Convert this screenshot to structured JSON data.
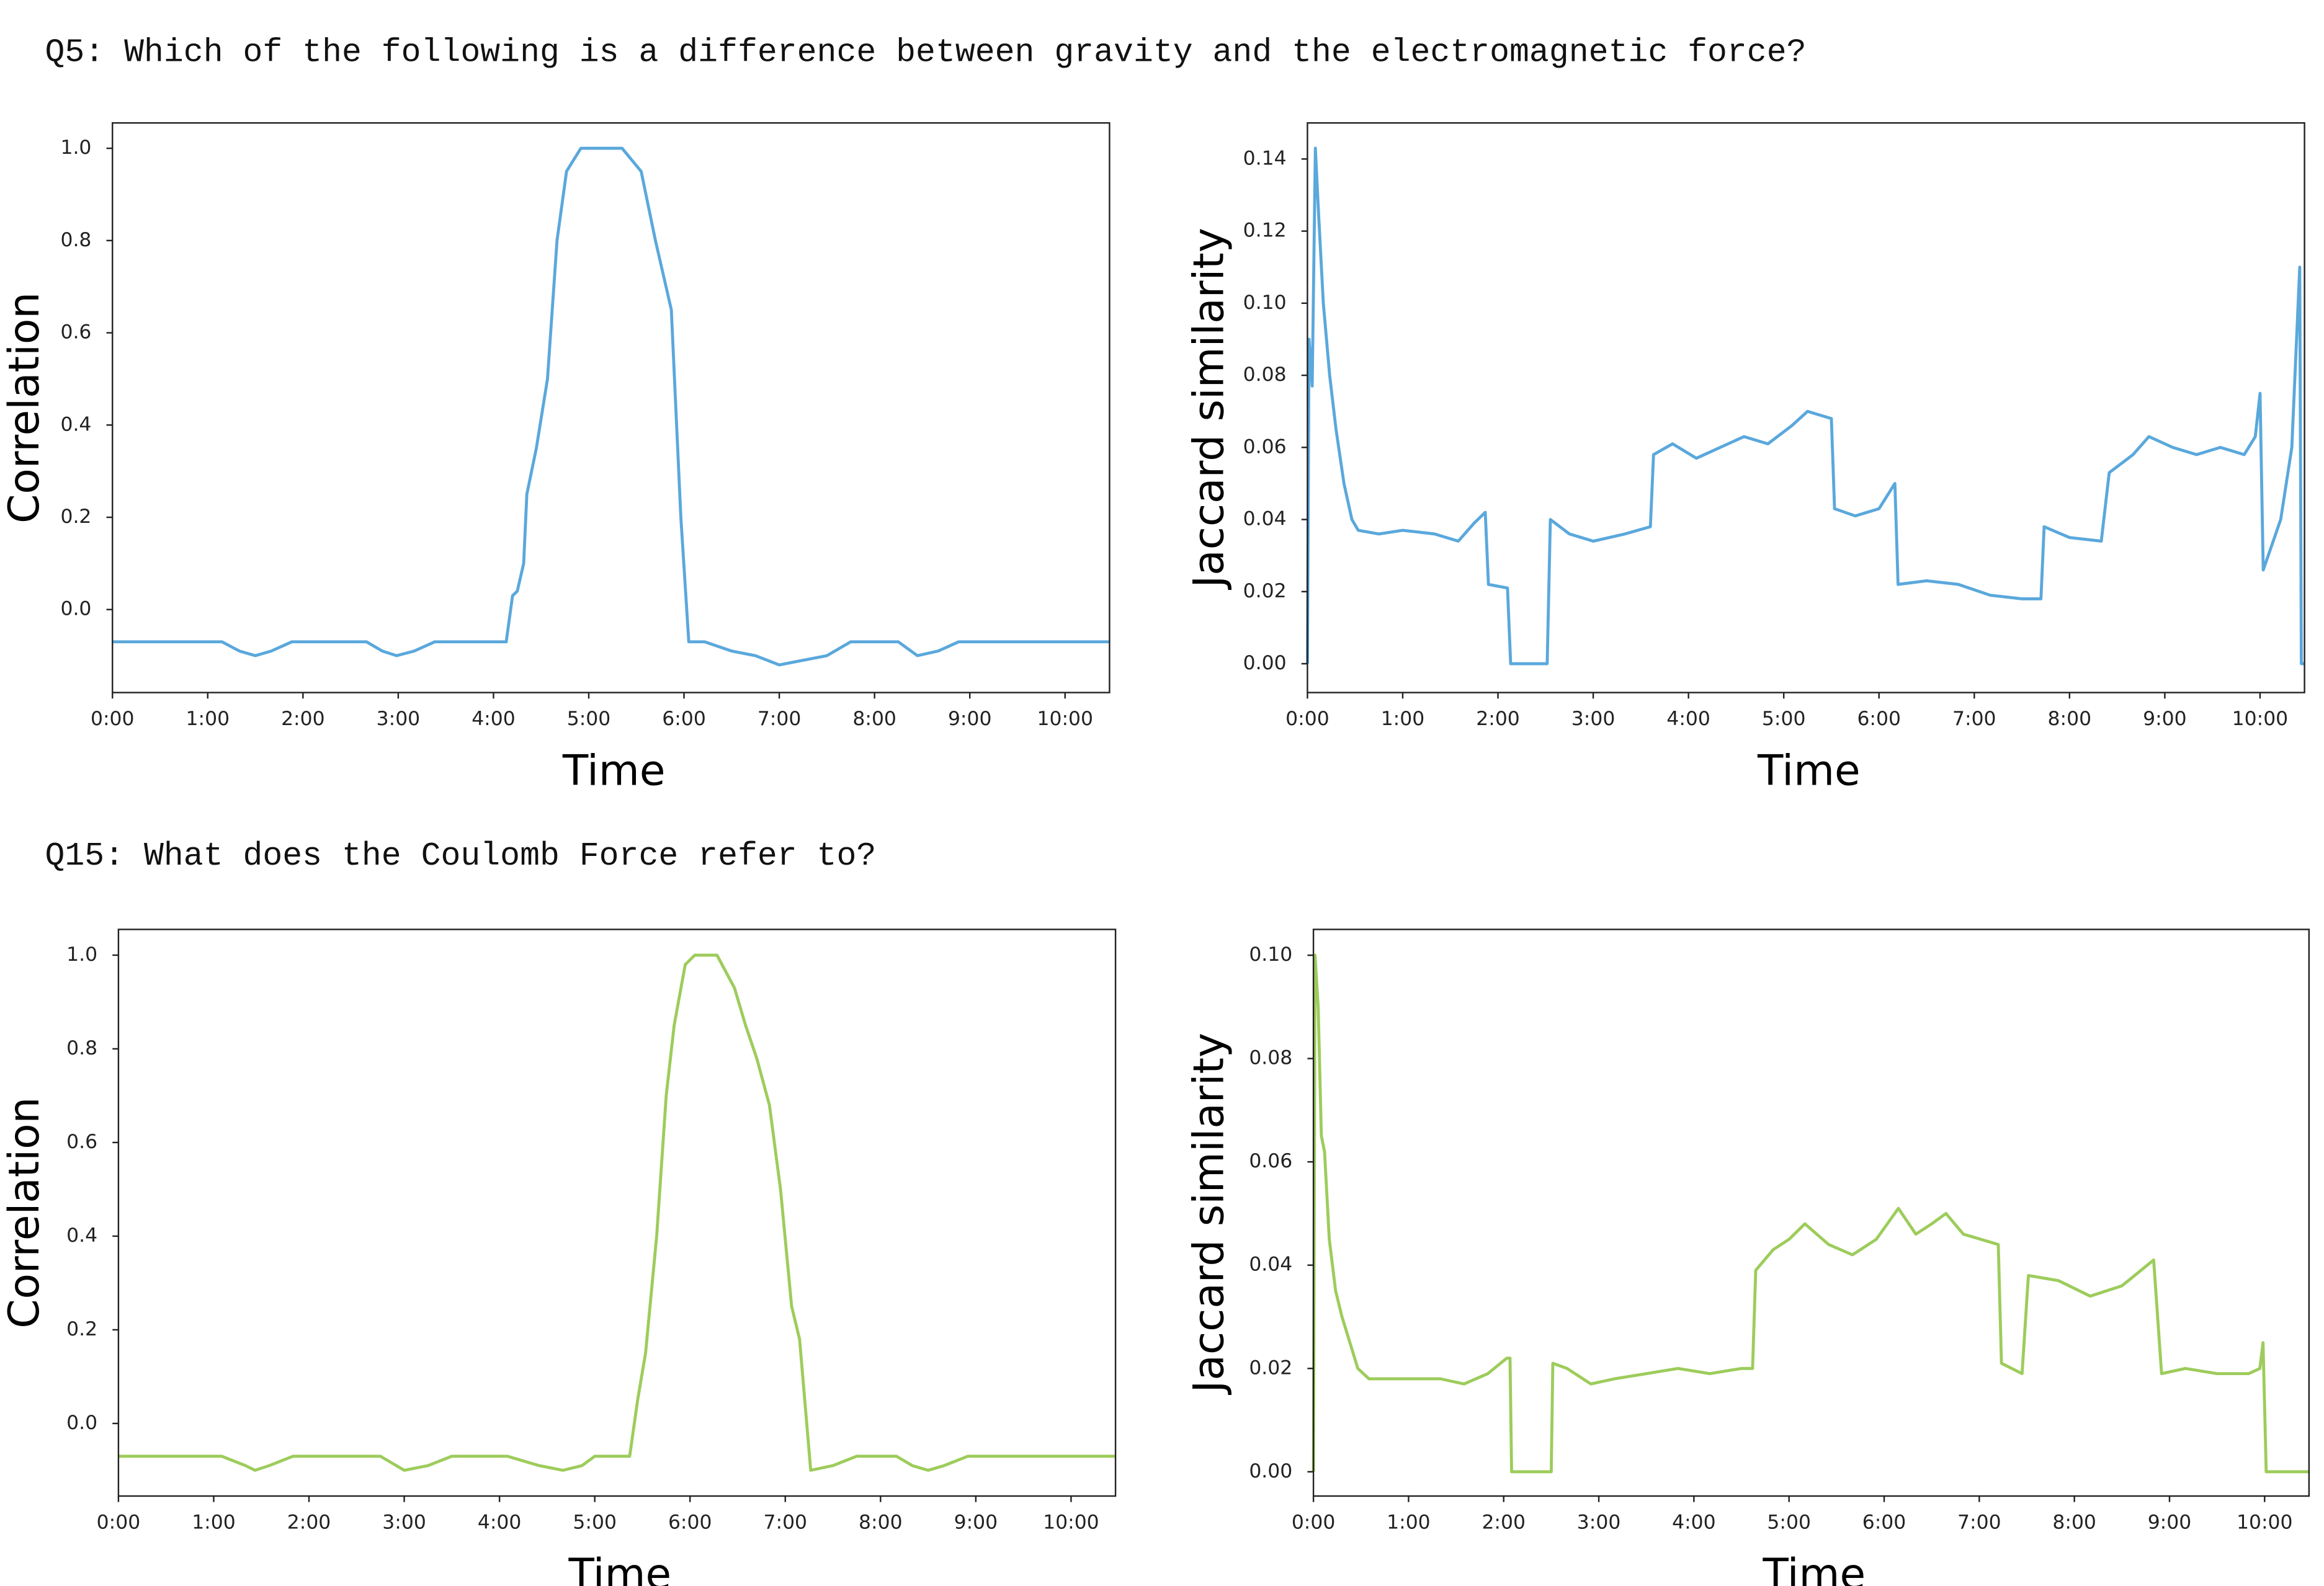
{
  "questions": [
    "Q5: Which of the following is a difference between gravity and the electromagnetic force?",
    "Q15: What does the Coulomb Force refer to?"
  ],
  "chart_data": [
    {
      "type": "line",
      "xlabel": "Time",
      "ylabel": "Correlation",
      "color": "#5aa8dc",
      "xlim": [
        0,
        628
      ],
      "ylim": [
        -0.18,
        1.055
      ],
      "xticks": [
        {
          "value": 0,
          "label": "0:00"
        },
        {
          "value": 60,
          "label": "1:00"
        },
        {
          "value": 120,
          "label": "2:00"
        },
        {
          "value": 180,
          "label": "3:00"
        },
        {
          "value": 240,
          "label": "4:00"
        },
        {
          "value": 300,
          "label": "5:00"
        },
        {
          "value": 360,
          "label": "6:00"
        },
        {
          "value": 420,
          "label": "7:00"
        },
        {
          "value": 480,
          "label": "8:00"
        },
        {
          "value": 540,
          "label": "9:00"
        },
        {
          "value": 600,
          "label": "10:00"
        }
      ],
      "yticks": [
        {
          "value": 0,
          "label": "0.0"
        },
        0.2,
        0.4,
        0.6,
        0.8,
        {
          "value": 1,
          "label": "1.0"
        }
      ],
      "x": [
        0,
        69,
        80,
        90,
        100,
        113,
        160,
        170,
        179,
        190,
        203,
        248,
        252,
        255,
        259,
        261,
        267,
        274,
        280,
        286,
        295,
        321,
        333,
        342,
        352,
        358,
        363,
        373,
        390,
        405,
        420,
        435,
        450,
        465,
        495,
        507,
        520,
        533,
        628
      ],
      "values": [
        -0.07,
        -0.07,
        -0.09,
        -0.1,
        -0.09,
        -0.07,
        -0.07,
        -0.09,
        -0.1,
        -0.09,
        -0.07,
        -0.07,
        0.03,
        0.04,
        0.1,
        0.25,
        0.35,
        0.5,
        0.8,
        0.95,
        1.0,
        1.0,
        0.95,
        0.8,
        0.65,
        0.2,
        -0.07,
        -0.07,
        -0.09,
        -0.1,
        -0.12,
        -0.11,
        -0.1,
        -0.07,
        -0.07,
        -0.1,
        -0.09,
        -0.07,
        -0.07
      ]
    },
    {
      "type": "line",
      "xlabel": "Time",
      "ylabel": "Jaccard similarity",
      "color": "#5aa8dc",
      "xlim": [
        0,
        628
      ],
      "ylim": [
        -0.008,
        0.15
      ],
      "xticks": [
        {
          "value": 0,
          "label": "0:00"
        },
        {
          "value": 60,
          "label": "1:00"
        },
        {
          "value": 120,
          "label": "2:00"
        },
        {
          "value": 180,
          "label": "3:00"
        },
        {
          "value": 240,
          "label": "4:00"
        },
        {
          "value": 300,
          "label": "5:00"
        },
        {
          "value": 360,
          "label": "6:00"
        },
        {
          "value": 420,
          "label": "7:00"
        },
        {
          "value": 480,
          "label": "8:00"
        },
        {
          "value": 540,
          "label": "9:00"
        },
        {
          "value": 600,
          "label": "10:00"
        }
      ],
      "yticks": [
        {
          "value": 0,
          "label": "0.00"
        },
        0.02,
        0.04,
        0.06,
        0.08,
        {
          "value": 0.1,
          "label": "0.10"
        },
        0.12,
        0.14
      ],
      "x": [
        0,
        1,
        3,
        5,
        7,
        10,
        14,
        18,
        23,
        28,
        32,
        45,
        60,
        80,
        95,
        105,
        112,
        114,
        126,
        128,
        151,
        153,
        165,
        180,
        200,
        216,
        218,
        230,
        245,
        260,
        275,
        290,
        305,
        315,
        330,
        332,
        345,
        360,
        370,
        372,
        390,
        410,
        430,
        450,
        462,
        464,
        480,
        500,
        505,
        520,
        530,
        545,
        560,
        575,
        590,
        597,
        600,
        602,
        613,
        620,
        625,
        626,
        628
      ],
      "values": [
        0,
        0.09,
        0.077,
        0.143,
        0.125,
        0.1,
        0.08,
        0.065,
        0.05,
        0.04,
        0.037,
        0.036,
        0.037,
        0.036,
        0.034,
        0.039,
        0.042,
        0.022,
        0.021,
        0,
        0,
        0.04,
        0.036,
        0.034,
        0.036,
        0.038,
        0.058,
        0.061,
        0.057,
        0.06,
        0.063,
        0.061,
        0.066,
        0.07,
        0.068,
        0.043,
        0.041,
        0.043,
        0.05,
        0.022,
        0.023,
        0.022,
        0.019,
        0.018,
        0.018,
        0.038,
        0.035,
        0.034,
        0.053,
        0.058,
        0.063,
        0.06,
        0.058,
        0.06,
        0.058,
        0.063,
        0.075,
        0.026,
        0.04,
        0.06,
        0.11,
        0,
        0
      ]
    },
    {
      "type": "line",
      "xlabel": "Time",
      "ylabel": "Correlation",
      "color": "#9dcc5b",
      "xlim": [
        0,
        628
      ],
      "ylim": [
        -0.155,
        1.055
      ],
      "xticks": [
        {
          "value": 0,
          "label": "0:00"
        },
        {
          "value": 60,
          "label": "1:00"
        },
        {
          "value": 120,
          "label": "2:00"
        },
        {
          "value": 180,
          "label": "3:00"
        },
        {
          "value": 240,
          "label": "4:00"
        },
        {
          "value": 300,
          "label": "5:00"
        },
        {
          "value": 360,
          "label": "6:00"
        },
        {
          "value": 420,
          "label": "7:00"
        },
        {
          "value": 480,
          "label": "8:00"
        },
        {
          "value": 540,
          "label": "9:00"
        },
        {
          "value": 600,
          "label": "10:00"
        }
      ],
      "yticks": [
        {
          "value": 0,
          "label": "0.0"
        },
        0.2,
        0.4,
        0.6,
        0.8,
        {
          "value": 1,
          "label": "1.0"
        }
      ],
      "x": [
        0,
        65,
        80,
        86,
        95,
        110,
        165,
        180,
        195,
        210,
        245,
        265,
        280,
        292,
        300,
        322,
        327,
        332,
        339,
        345,
        350,
        357,
        363,
        377,
        388,
        395,
        402,
        410,
        417,
        424,
        429,
        436,
        450,
        465,
        490,
        500,
        510,
        520,
        535,
        628
      ],
      "values": [
        -0.07,
        -0.07,
        -0.09,
        -0.1,
        -0.09,
        -0.07,
        -0.07,
        -0.1,
        -0.09,
        -0.07,
        -0.07,
        -0.09,
        -0.1,
        -0.09,
        -0.07,
        -0.07,
        0.05,
        0.15,
        0.4,
        0.7,
        0.85,
        0.98,
        1.0,
        1.0,
        0.93,
        0.85,
        0.78,
        0.68,
        0.5,
        0.25,
        0.18,
        -0.1,
        -0.09,
        -0.07,
        -0.07,
        -0.09,
        -0.1,
        -0.09,
        -0.07,
        -0.07
      ]
    },
    {
      "type": "line",
      "xlabel": "Time",
      "ylabel": "Jaccard similarity",
      "color": "#9dcc5b",
      "xlim": [
        0,
        628
      ],
      "ylim": [
        -0.0047,
        0.105
      ],
      "xticks": [
        {
          "value": 0,
          "label": "0:00"
        },
        {
          "value": 60,
          "label": "1:00"
        },
        {
          "value": 120,
          "label": "2:00"
        },
        {
          "value": 180,
          "label": "3:00"
        },
        {
          "value": 240,
          "label": "4:00"
        },
        {
          "value": 300,
          "label": "5:00"
        },
        {
          "value": 360,
          "label": "6:00"
        },
        {
          "value": 420,
          "label": "7:00"
        },
        {
          "value": 480,
          "label": "8:00"
        },
        {
          "value": 540,
          "label": "9:00"
        },
        {
          "value": 600,
          "label": "10:00"
        }
      ],
      "yticks": [
        {
          "value": 0,
          "label": "0.00"
        },
        0.02,
        0.04,
        0.06,
        0.08,
        {
          "value": 0.1,
          "label": "0.10"
        }
      ],
      "x": [
        0,
        1,
        3,
        5,
        7,
        10,
        14,
        18,
        23,
        28,
        35,
        60,
        80,
        95,
        110,
        122,
        124,
        125,
        150,
        151,
        160,
        175,
        190,
        210,
        230,
        250,
        270,
        277,
        279,
        290,
        300,
        310,
        325,
        340,
        355,
        369,
        380,
        390,
        399,
        410,
        432,
        434,
        447,
        451,
        470,
        490,
        510,
        530,
        535,
        550,
        570,
        590,
        597,
        599,
        601,
        628
      ],
      "values": [
        0,
        0.1,
        0.09,
        0.065,
        0.062,
        0.045,
        0.035,
        0.03,
        0.025,
        0.02,
        0.018,
        0.018,
        0.018,
        0.017,
        0.019,
        0.022,
        0.022,
        0,
        0,
        0.021,
        0.02,
        0.017,
        0.018,
        0.019,
        0.02,
        0.019,
        0.02,
        0.02,
        0.039,
        0.043,
        0.045,
        0.048,
        0.044,
        0.042,
        0.045,
        0.051,
        0.046,
        0.048,
        0.05,
        0.046,
        0.044,
        0.021,
        0.019,
        0.038,
        0.037,
        0.034,
        0.036,
        0.041,
        0.019,
        0.02,
        0.019,
        0.019,
        0.02,
        0.025,
        0,
        0
      ]
    }
  ]
}
